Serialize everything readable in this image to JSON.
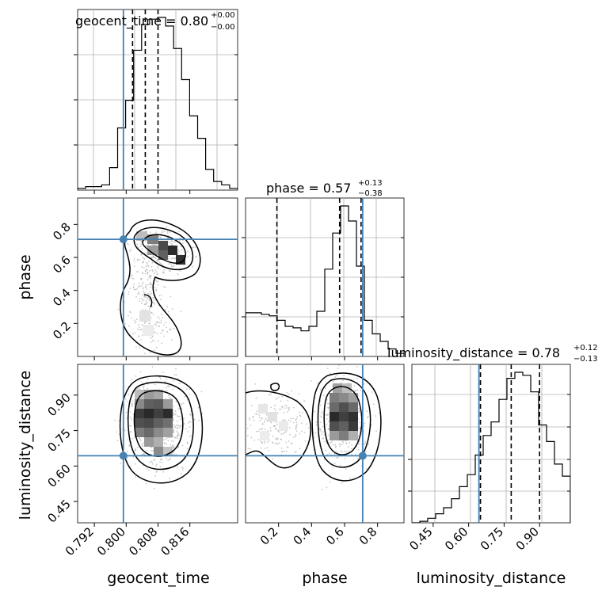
{
  "chart_data": {
    "type": "corner",
    "parameters": [
      {
        "name": "geocent_time",
        "axis_label": "geocent_time",
        "median": 0.8,
        "plus": 0.0,
        "minus": 0.0,
        "title_main": "geocent_time = 0.80",
        "title_sup": "+0.00",
        "title_sub": "−0.00",
        "range": [
          0.7878,
          0.828
        ],
        "ticks": [
          0.792,
          0.8,
          0.808,
          0.816
        ],
        "tick_labels": [
          "0.792",
          "0.800",
          "0.808",
          "0.816"
        ],
        "quantiles": [
          0.8016,
          0.8048,
          0.808
        ],
        "truth": 0.7993
      },
      {
        "name": "phase",
        "axis_label": "phase",
        "median": 0.57,
        "plus": 0.13,
        "minus": 0.38,
        "title_main": "phase = 0.57",
        "title_sup": "+0.13",
        "title_sub": "−0.38",
        "range": [
          0.0,
          0.96
        ],
        "ticks": [
          0.2,
          0.4,
          0.6,
          0.8
        ],
        "tick_labels": [
          "0.2",
          "0.4",
          "0.6",
          "0.8"
        ],
        "quantiles": [
          0.19,
          0.57,
          0.7
        ],
        "truth": 0.7097
      },
      {
        "name": "luminosity_distance",
        "axis_label": "luminosity_distance",
        "median": 0.78,
        "plus": 0.12,
        "minus": 0.13,
        "title_main": "luminosity_distance = 0.78",
        "title_sup": "+0.12",
        "title_sub": "−0.13",
        "range": [
          0.36,
          1.03
        ],
        "ticks": [
          0.45,
          0.6,
          0.75,
          0.9
        ],
        "tick_labels": [
          "0.45",
          "0.60",
          "0.75",
          "0.90"
        ],
        "quantiles": [
          0.65,
          0.78,
          0.9
        ],
        "truth": 0.6434
      }
    ],
    "histograms": [
      [
        0.01,
        0.02,
        0.02,
        0.03,
        0.13,
        0.36,
        0.52,
        0.81,
        0.96,
        0.99,
        1.0,
        0.95,
        0.82,
        0.64,
        0.43,
        0.3,
        0.12,
        0.05,
        0.03,
        0.01
      ],
      [
        0.29,
        0.29,
        0.28,
        0.27,
        0.24,
        0.2,
        0.19,
        0.17,
        0.2,
        0.3,
        0.58,
        0.82,
        1.0,
        0.9,
        0.6,
        0.24,
        0.15,
        0.1,
        0.05,
        0.02
      ],
      [
        0.0,
        0.01,
        0.03,
        0.06,
        0.1,
        0.16,
        0.24,
        0.32,
        0.45,
        0.58,
        0.67,
        0.82,
        0.96,
        1.0,
        0.98,
        0.87,
        0.65,
        0.54,
        0.39,
        0.31
      ]
    ],
    "line_color": "#000000",
    "truth_color": "#4682b4",
    "grid": true
  }
}
